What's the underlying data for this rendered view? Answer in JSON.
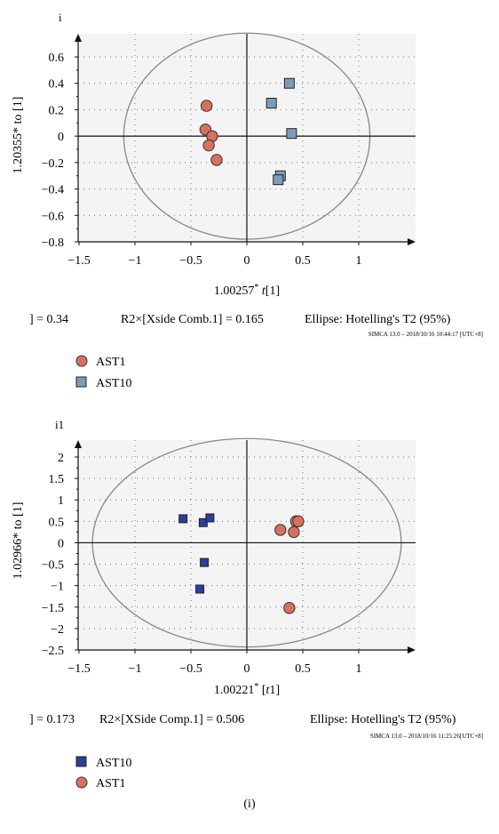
{
  "figure_label": "(i)",
  "chart_data": [
    {
      "type": "scatter",
      "panel_label": "i",
      "xlabel_coef": "1.00257",
      "xlabel_var": "t",
      "xlabel_idx": "[1]",
      "ylabel": "1.20355* to [1]",
      "xlim": [
        -1.5,
        1.5
      ],
      "ylim": [
        -0.8,
        0.8
      ],
      "x_ticks": [
        -1.5,
        -1,
        -0.5,
        0,
        0.5,
        1
      ],
      "x_tick_labels": [
        "−1.5",
        "−1",
        "−0.5",
        "0",
        "0.5",
        "1"
      ],
      "y_ticks": [
        0.6,
        0.4,
        0.2,
        0,
        -0.2,
        -0.4,
        -0.6,
        -0.8
      ],
      "y_tick_labels": [
        "0.6",
        "0.4",
        "0.2",
        "0",
        "−0.2",
        "−0.4",
        "−0.6",
        "−0.8"
      ],
      "grid": true,
      "ellipse": {
        "cx": 0,
        "cy": 0,
        "rx": 1.1,
        "ry": 0.78
      },
      "stats_text": "] = 0.34    R2×[Xside Comb.1] = 0.165    Ellipse: Hotelling's T2 (95%)",
      "stats_parts": [
        "] = 0.34",
        "R2×[Xside Comb.1] = 0.165",
        "Ellipse: Hotelling's T2 (95%)"
      ],
      "simca_text": "SIMCA 13.0 – 2018/10/16 10:44:17 [UTC+8]",
      "series": [
        {
          "name": "AST1",
          "marker": "circle",
          "color": "#d9705f",
          "points": [
            [
              -0.36,
              0.23
            ],
            [
              -0.37,
              0.05
            ],
            [
              -0.31,
              0.0
            ],
            [
              -0.34,
              -0.07
            ],
            [
              -0.27,
              -0.18
            ]
          ]
        },
        {
          "name": "AST10",
          "marker": "square",
          "color": "#7b9eb8",
          "points": [
            [
              0.38,
              0.4
            ],
            [
              0.22,
              0.25
            ],
            [
              0.4,
              0.02
            ],
            [
              0.3,
              -0.3
            ],
            [
              0.28,
              -0.33
            ]
          ]
        }
      ],
      "legend": [
        {
          "name": "AST1",
          "marker": "circle",
          "color": "#d9705f"
        },
        {
          "name": "AST10",
          "marker": "square",
          "color": "#7b9eb8"
        }
      ]
    },
    {
      "type": "scatter",
      "panel_label": "i1",
      "xlabel_coef": "1.00221",
      "xlabel_var": "t",
      "xlabel_idx": "1",
      "ylabel": "1.02966* to [1]",
      "xlim": [
        -1.5,
        1.5
      ],
      "ylim": [
        -2.5,
        2.5
      ],
      "x_ticks": [
        -1.5,
        -1,
        -0.5,
        0,
        0.5,
        1
      ],
      "x_tick_labels": [
        "−1.5",
        "−1",
        "−0.5",
        "0",
        "0.5",
        "1"
      ],
      "y_ticks": [
        2,
        1.5,
        1,
        0.5,
        0,
        -0.5,
        -1,
        -1.5,
        -2,
        -2.5
      ],
      "y_tick_labels": [
        "2",
        "1.5",
        "1",
        "0.5",
        "0",
        "−0.5",
        "−1",
        "−1.5",
        "−2",
        "−2.5"
      ],
      "grid": true,
      "ellipse": {
        "cx": 0,
        "cy": 0,
        "rx": 1.38,
        "ry": 2.43
      },
      "stats_text": "] = 0.173    R2×[XSide Comp.1] = 0.506    Ellipse: Hotelling's T2 (95%)",
      "stats_parts": [
        "] = 0.173",
        "R2×[XSide Comp.1] = 0.506",
        "Ellipse: Hotelling's T2 (95%)"
      ],
      "simca_text": "SIMCA 13.0 – 2018/10/16 11:25:26[UTC+8]",
      "series": [
        {
          "name": "AST10",
          "marker": "square",
          "color": "#2a3f9a",
          "points": [
            [
              -0.57,
              0.56
            ],
            [
              -0.39,
              0.47
            ],
            [
              -0.33,
              0.58
            ],
            [
              -0.38,
              -0.46
            ],
            [
              -0.42,
              -1.08
            ]
          ]
        },
        {
          "name": "AST1",
          "marker": "circle",
          "color": "#d9705f",
          "points": [
            [
              0.44,
              0.5
            ],
            [
              0.46,
              0.5
            ],
            [
              0.3,
              0.3
            ],
            [
              0.42,
              0.25
            ],
            [
              0.38,
              -1.52
            ]
          ]
        }
      ],
      "legend": [
        {
          "name": "AST10",
          "marker": "square",
          "color": "#2a3f9a"
        },
        {
          "name": "AST1",
          "marker": "circle",
          "color": "#d9705f"
        }
      ]
    }
  ]
}
